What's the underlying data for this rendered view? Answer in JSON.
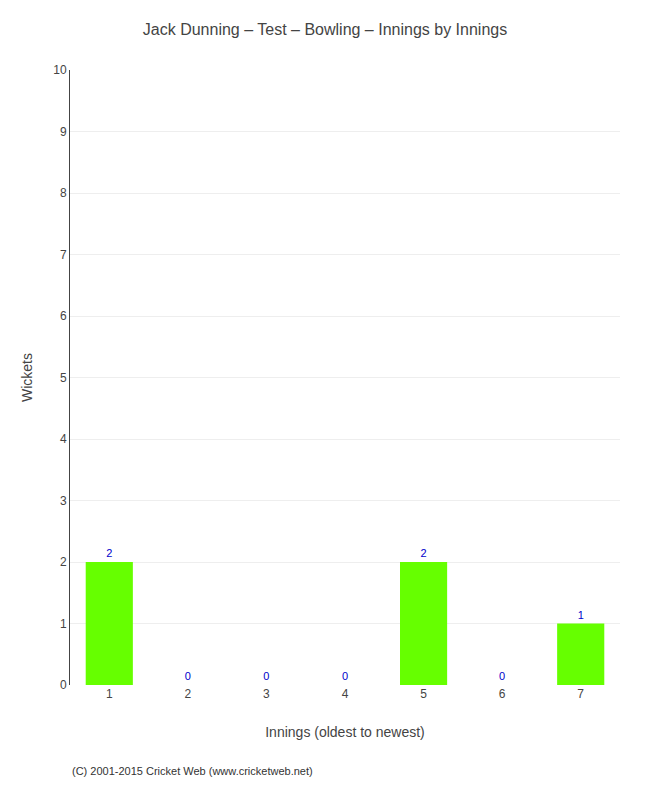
{
  "chart_data": {
    "type": "bar",
    "title": "Jack Dunning – Test – Bowling – Innings by Innings",
    "xlabel": "Innings (oldest to newest)",
    "ylabel": "Wickets",
    "categories": [
      "1",
      "2",
      "3",
      "4",
      "5",
      "6",
      "7"
    ],
    "values": [
      2,
      0,
      0,
      0,
      2,
      0,
      1
    ],
    "color": "#66ff00",
    "ylim": [
      0,
      10
    ],
    "yticks": [
      0,
      1,
      2,
      3,
      4,
      5,
      6,
      7,
      8,
      9,
      10
    ],
    "grid": true,
    "data_labels": true,
    "annotations": [
      "(C) 2001-2015 Cricket Web (www.cricketweb.net)"
    ]
  }
}
